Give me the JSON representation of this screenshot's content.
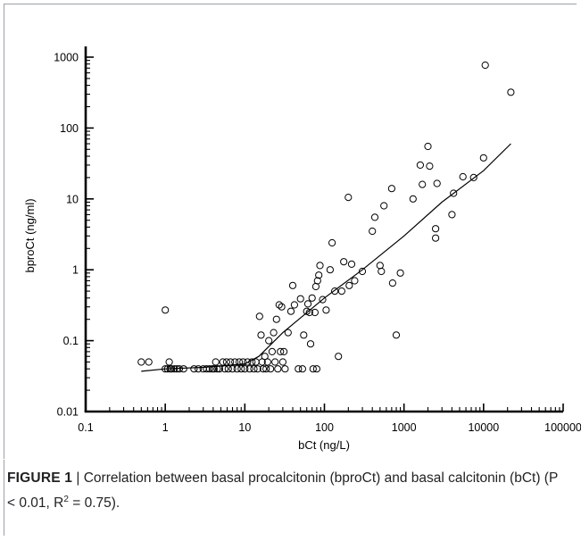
{
  "caption": {
    "label": "FIGURE 1",
    "separator": " | ",
    "text_part1": "Correlation between basal procalcitonin (bproCt) and basal calcitonin (bCt) (P < 0.01, R",
    "superscript": "2",
    "text_part2": " = 0.75)."
  },
  "chart_data": {
    "type": "scatter",
    "xlabel": "bCt (ng/L)",
    "ylabel": "bproCt (ng/ml)",
    "x_scale": "log",
    "y_scale": "log",
    "xlim": [
      0.1,
      100000
    ],
    "ylim": [
      0.01,
      1000
    ],
    "x_ticks": [
      0.1,
      1,
      10,
      100,
      1000,
      10000,
      100000
    ],
    "x_tick_labels": [
      "0.1",
      "1",
      "10",
      "100",
      "1000",
      "10000",
      "100000"
    ],
    "y_ticks": [
      0.01,
      0.1,
      1,
      10,
      100,
      1000
    ],
    "y_tick_labels": [
      "0.01",
      "0.1",
      "1",
      "10",
      "100",
      "1000"
    ],
    "grid": false,
    "marker": "open-circle",
    "points": [
      [
        0.5,
        0.05
      ],
      [
        0.62,
        0.05
      ],
      [
        1.0,
        0.27
      ],
      [
        1.0,
        0.04
      ],
      [
        1.07,
        0.04
      ],
      [
        1.12,
        0.05
      ],
      [
        1.15,
        0.04
      ],
      [
        1.2,
        0.04
      ],
      [
        1.3,
        0.04
      ],
      [
        1.4,
        0.04
      ],
      [
        1.5,
        0.04
      ],
      [
        1.7,
        0.04
      ],
      [
        2.3,
        0.04
      ],
      [
        2.6,
        0.04
      ],
      [
        3.0,
        0.04
      ],
      [
        3.3,
        0.04
      ],
      [
        3.6,
        0.04
      ],
      [
        3.9,
        0.04
      ],
      [
        4.1,
        0.04
      ],
      [
        4.3,
        0.05
      ],
      [
        4.5,
        0.04
      ],
      [
        4.8,
        0.04
      ],
      [
        5.3,
        0.05
      ],
      [
        5.6,
        0.04
      ],
      [
        5.9,
        0.05
      ],
      [
        6.2,
        0.04
      ],
      [
        6.6,
        0.05
      ],
      [
        7.0,
        0.04
      ],
      [
        7.5,
        0.05
      ],
      [
        8.0,
        0.04
      ],
      [
        8.5,
        0.05
      ],
      [
        9.0,
        0.04
      ],
      [
        9.5,
        0.05
      ],
      [
        10.0,
        0.04
      ],
      [
        10.8,
        0.05
      ],
      [
        11.5,
        0.04
      ],
      [
        12.3,
        0.05
      ],
      [
        13.0,
        0.04
      ],
      [
        13.8,
        0.05
      ],
      [
        14.5,
        0.04
      ],
      [
        15.3,
        0.22
      ],
      [
        16.0,
        0.12
      ],
      [
        16.5,
        0.05
      ],
      [
        17.0,
        0.04
      ],
      [
        17.8,
        0.06
      ],
      [
        18.5,
        0.04
      ],
      [
        19.3,
        0.05
      ],
      [
        20.0,
        0.1
      ],
      [
        21.0,
        0.04
      ],
      [
        22.0,
        0.07
      ],
      [
        23.0,
        0.13
      ],
      [
        24.0,
        0.05
      ],
      [
        25.0,
        0.2
      ],
      [
        26.0,
        0.04
      ],
      [
        27.0,
        0.32
      ],
      [
        28.0,
        0.07
      ],
      [
        29.0,
        0.3
      ],
      [
        30.0,
        0.05
      ],
      [
        31.0,
        0.07
      ],
      [
        32.0,
        0.04
      ],
      [
        35.0,
        0.13
      ],
      [
        38.0,
        0.26
      ],
      [
        40.0,
        0.6
      ],
      [
        42.0,
        0.32
      ],
      [
        47.0,
        0.04
      ],
      [
        50.0,
        0.39
      ],
      [
        53.0,
        0.04
      ],
      [
        55.0,
        0.12
      ],
      [
        60.0,
        0.26
      ],
      [
        62.0,
        0.33
      ],
      [
        65.0,
        0.25
      ],
      [
        67.0,
        0.09
      ],
      [
        70.0,
        0.4
      ],
      [
        72.0,
        0.04
      ],
      [
        76.0,
        0.25
      ],
      [
        78.0,
        0.58
      ],
      [
        80.0,
        0.04
      ],
      [
        82.0,
        0.7
      ],
      [
        85.0,
        0.84
      ],
      [
        88.0,
        1.15
      ],
      [
        95.0,
        0.38
      ],
      [
        105.0,
        0.27
      ],
      [
        118.0,
        1.0
      ],
      [
        125.0,
        2.4
      ],
      [
        135.0,
        0.5
      ],
      [
        150.0,
        0.06
      ],
      [
        165.0,
        0.5
      ],
      [
        175.0,
        1.3
      ],
      [
        200.0,
        10.5
      ],
      [
        205.0,
        0.6
      ],
      [
        220.0,
        1.2
      ],
      [
        240.0,
        0.7
      ],
      [
        300.0,
        0.95
      ],
      [
        400.0,
        3.5
      ],
      [
        430.0,
        5.5
      ],
      [
        500.0,
        1.15
      ],
      [
        520.0,
        0.95
      ],
      [
        560.0,
        8.0
      ],
      [
        700.0,
        14.0
      ],
      [
        720.0,
        0.65
      ],
      [
        800.0,
        0.12
      ],
      [
        900.0,
        0.9
      ],
      [
        1300.0,
        10.0
      ],
      [
        1600.0,
        30.0
      ],
      [
        1700.0,
        16.0
      ],
      [
        2000.0,
        55.0
      ],
      [
        2100.0,
        29.0
      ],
      [
        2500.0,
        3.8
      ],
      [
        2500.0,
        2.8
      ],
      [
        2600.0,
        16.5
      ],
      [
        4000.0,
        6.0
      ],
      [
        4200.0,
        12.0
      ],
      [
        5500.0,
        20.5
      ],
      [
        7500.0,
        20.0
      ],
      [
        10000.0,
        38.0
      ],
      [
        10500.0,
        770.0
      ],
      [
        22000.0,
        320.0
      ]
    ],
    "regression_line": [
      [
        0.5,
        0.037
      ],
      [
        1.0,
        0.04
      ],
      [
        3.0,
        0.042
      ],
      [
        10.0,
        0.047
      ],
      [
        15.0,
        0.06
      ],
      [
        30.0,
        0.13
      ],
      [
        100.0,
        0.4
      ],
      [
        300.0,
        1.0
      ],
      [
        1000.0,
        3.0
      ],
      [
        3000.0,
        9.0
      ],
      [
        10000.0,
        25.0
      ],
      [
        22000.0,
        60.0
      ]
    ]
  }
}
